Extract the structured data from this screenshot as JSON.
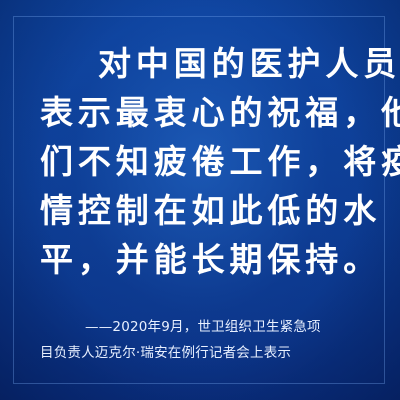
{
  "quote": {
    "lines": [
      "对中国的医护人员",
      "表示最衷心的祝福，他",
      "们不知疲倦工作，将疫",
      "情控制在如此低的水",
      "平，并能长期保持。"
    ]
  },
  "attribution": {
    "lines": [
      "——2020年9月，世卫组织卫生紧急项",
      "目负责人迈克尔·瑞安在例行记者会上表示"
    ]
  },
  "colors": {
    "background": "#0d3f96",
    "text": "#ffffff"
  }
}
